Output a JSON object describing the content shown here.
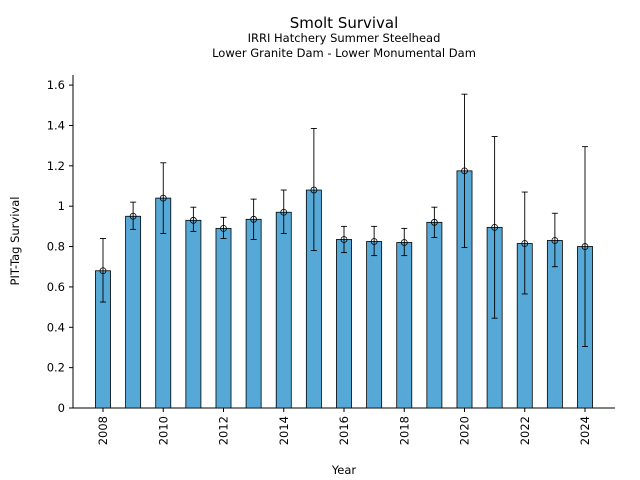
{
  "chart_data": {
    "type": "bar",
    "title": "Smolt Survival",
    "subtitle_lines": [
      "IRRI Hatchery Summer Steelhead",
      "Lower Granite Dam - Lower Monumental Dam"
    ],
    "xlabel": "Year",
    "ylabel": "PIT-Tag Survival",
    "ylim": [
      0,
      1.65
    ],
    "yticks": [
      0,
      0.2,
      0.4,
      0.6,
      0.8,
      1,
      1.2,
      1.4,
      1.6
    ],
    "ytick_labels": [
      "0",
      "0.2",
      "0.4",
      "0.6",
      "0.8",
      "1",
      "1.2",
      "1.4",
      "1.6"
    ],
    "xtick_labels": [
      "2008",
      "2010",
      "2012",
      "2014",
      "2016",
      "2018",
      "2020",
      "2022",
      "2024"
    ],
    "categories": [
      2008,
      2009,
      2010,
      2011,
      2012,
      2013,
      2014,
      2015,
      2016,
      2017,
      2018,
      2019,
      2020,
      2021,
      2022,
      2023,
      2024
    ],
    "values": [
      0.68,
      0.95,
      1.04,
      0.93,
      0.89,
      0.935,
      0.97,
      1.08,
      0.835,
      0.825,
      0.82,
      0.92,
      1.175,
      0.895,
      0.815,
      0.83,
      0.8
    ],
    "error_low": [
      0.525,
      0.885,
      0.865,
      0.875,
      0.84,
      0.835,
      0.865,
      0.78,
      0.77,
      0.755,
      0.755,
      0.845,
      0.795,
      0.445,
      0.565,
      0.7,
      0.305
    ],
    "error_high": [
      0.84,
      1.02,
      1.215,
      0.995,
      0.945,
      1.035,
      1.08,
      1.385,
      0.9,
      0.9,
      0.89,
      0.995,
      1.555,
      1.345,
      1.07,
      0.965,
      1.295
    ],
    "colors": {
      "bar": "#56a9d6",
      "edge": "#000000"
    },
    "grid": false
  }
}
